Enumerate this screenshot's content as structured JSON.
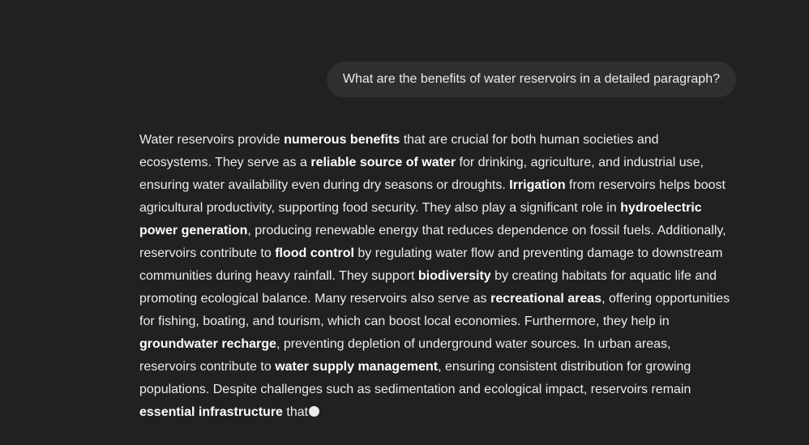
{
  "conversation": {
    "user_message": "What are the benefits of water reservoirs in a detailed paragraph?",
    "assistant_response": {
      "segments": [
        {
          "text": "Water reservoirs provide ",
          "bold": false
        },
        {
          "text": "numerous benefits",
          "bold": true
        },
        {
          "text": " that are crucial for both human societies and ecosystems. They serve as a ",
          "bold": false
        },
        {
          "text": "reliable source of water",
          "bold": true
        },
        {
          "text": " for drinking, agriculture, and industrial use, ensuring water availability even during dry seasons or droughts. ",
          "bold": false
        },
        {
          "text": "Irrigation",
          "bold": true
        },
        {
          "text": " from reservoirs helps boost agricultural productivity, supporting food security. They also play a significant role in ",
          "bold": false
        },
        {
          "text": "hydroelectric power generation",
          "bold": true
        },
        {
          "text": ", producing renewable energy that reduces dependence on fossil fuels. Additionally, reservoirs contribute to ",
          "bold": false
        },
        {
          "text": "flood control",
          "bold": true
        },
        {
          "text": " by regulating water flow and preventing damage to downstream communities during heavy rainfall. They support ",
          "bold": false
        },
        {
          "text": "biodiversity",
          "bold": true
        },
        {
          "text": " by creating habitats for aquatic life and promoting ecological balance. Many reservoirs also serve as ",
          "bold": false
        },
        {
          "text": "recreational areas",
          "bold": true
        },
        {
          "text": ", offering opportunities for fishing, boating, and tourism, which can boost local economies. Furthermore, they help in ",
          "bold": false
        },
        {
          "text": "groundwater recharge",
          "bold": true
        },
        {
          "text": ", preventing depletion of underground water sources. In urban areas, reservoirs contribute to ",
          "bold": false
        },
        {
          "text": "water supply management",
          "bold": true
        },
        {
          "text": ", ensuring consistent distribution for growing populations. Despite challenges such as sedimentation and ecological impact, reservoirs remain ",
          "bold": false
        },
        {
          "text": "essential infrastructure",
          "bold": true
        },
        {
          "text": " that",
          "bold": false
        }
      ],
      "streaming": true
    }
  },
  "colors": {
    "background": "#212121",
    "user_bubble": "#2f2f2f",
    "text": "#ececec"
  }
}
